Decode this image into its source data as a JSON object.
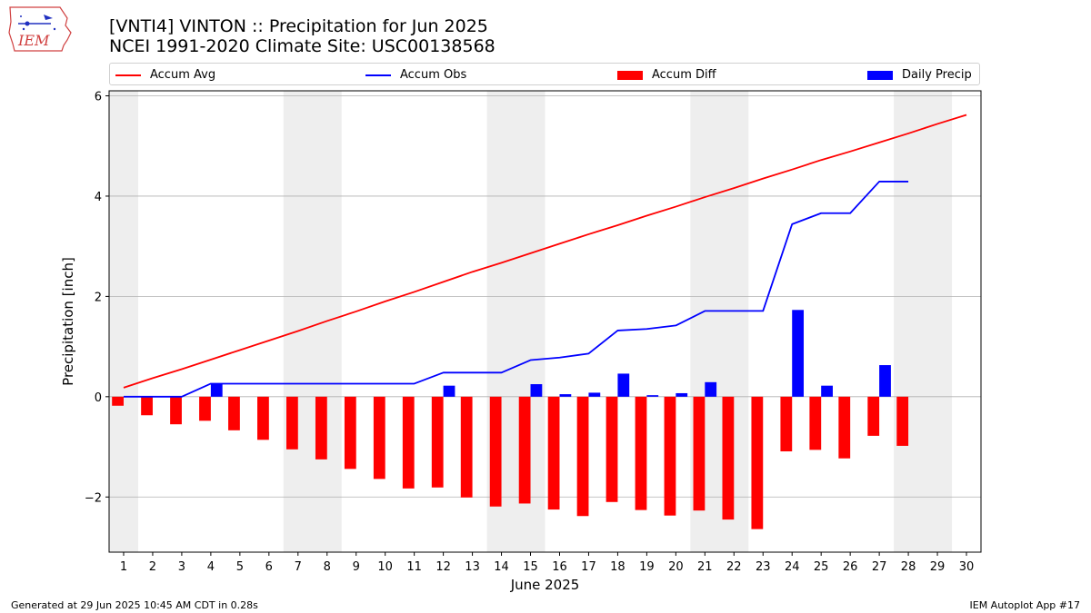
{
  "header": {
    "title_line1": "[VNTI4] VINTON :: Precipitation for Jun 2025",
    "title_line2": "NCEI 1991-2020 Climate Site: USC00138568",
    "logo_text": "IEM"
  },
  "footer": {
    "left": "Generated at 29 Jun 2025 10:45 AM CDT in 0.28s",
    "right": "IEM Autoplot App #17"
  },
  "legend": [
    {
      "label": "Accum Avg",
      "kind": "line",
      "color": "#ff0000"
    },
    {
      "label": "Accum Obs",
      "kind": "line",
      "color": "#0000ff"
    },
    {
      "label": "Accum Diff",
      "kind": "patch",
      "color": "#ff0000"
    },
    {
      "label": "Daily Precip",
      "kind": "patch",
      "color": "#0000ff"
    }
  ],
  "chart_data": {
    "type": "bar",
    "xlabel": "June 2025",
    "ylabel": "Precipitation [inch]",
    "xlim": [
      0.5,
      30.5
    ],
    "ylim": [
      -3.1,
      6.1
    ],
    "yticks": [
      -2,
      0,
      2,
      4,
      6
    ],
    "ytick_labels": [
      "−2",
      "0",
      "2",
      "4",
      "6"
    ],
    "x": [
      1,
      2,
      3,
      4,
      5,
      6,
      7,
      8,
      9,
      10,
      11,
      12,
      13,
      14,
      15,
      16,
      17,
      18,
      19,
      20,
      21,
      22,
      23,
      24,
      25,
      26,
      27,
      28,
      29,
      30
    ],
    "weekend_shading": [
      [
        0.5,
        1.5
      ],
      [
        6.5,
        8.5
      ],
      [
        13.5,
        15.5
      ],
      [
        20.5,
        22.5
      ],
      [
        27.5,
        29.5
      ]
    ],
    "grid": "horizontal",
    "colors": {
      "avg": "#ff0000",
      "obs": "#0000ff",
      "diff": "#ff0000",
      "daily": "#0000ff",
      "shade": "#eeeeee"
    },
    "series": [
      {
        "name": "Accum Avg",
        "type": "line",
        "values": [
          0.18,
          0.37,
          0.55,
          0.74,
          0.93,
          1.12,
          1.31,
          1.51,
          1.7,
          1.9,
          2.09,
          2.29,
          2.49,
          2.67,
          2.86,
          3.05,
          3.24,
          3.42,
          3.61,
          3.79,
          3.98,
          4.16,
          4.35,
          4.53,
          4.72,
          4.89,
          5.07,
          5.25,
          5.44,
          5.62
        ]
      },
      {
        "name": "Accum Obs",
        "type": "line",
        "values": [
          0.0,
          0.0,
          0.0,
          0.26,
          0.26,
          0.26,
          0.26,
          0.26,
          0.26,
          0.26,
          0.26,
          0.48,
          0.48,
          0.48,
          0.73,
          0.78,
          0.86,
          1.32,
          1.35,
          1.42,
          1.71,
          1.71,
          1.71,
          3.44,
          3.66,
          3.66,
          4.29,
          4.29,
          null,
          null
        ]
      },
      {
        "name": "Accum Diff",
        "type": "bar",
        "values": [
          -0.18,
          -0.37,
          -0.55,
          -0.48,
          -0.67,
          -0.86,
          -1.05,
          -1.25,
          -1.44,
          -1.64,
          -1.83,
          -1.81,
          -2.01,
          -2.19,
          -2.13,
          -2.25,
          -2.38,
          -2.1,
          -2.26,
          -2.37,
          -2.27,
          -2.45,
          -2.64,
          -1.09,
          -1.06,
          -1.23,
          -0.78,
          -0.98,
          null,
          null
        ]
      },
      {
        "name": "Daily Precip",
        "type": "bar",
        "values": [
          0,
          0,
          0,
          0.26,
          0,
          0,
          0,
          0,
          0,
          0,
          0,
          0.22,
          0,
          0,
          0.25,
          0.05,
          0.08,
          0.46,
          0.03,
          0.07,
          0.29,
          0,
          0,
          1.73,
          0.22,
          0,
          0.63,
          0,
          null,
          null
        ]
      }
    ]
  }
}
